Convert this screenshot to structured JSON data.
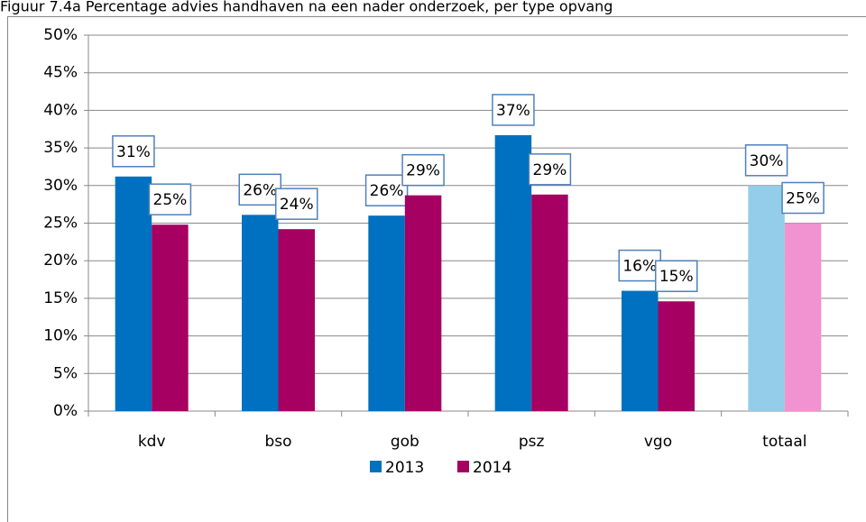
{
  "chart_data": {
    "type": "bar",
    "title": "Figuur 7.4a Percentage advies handhaven na een nader onderzoek, per type opvang",
    "categories": [
      "kdv",
      "bso",
      "gob",
      "psz",
      "vgo",
      "totaal"
    ],
    "series": [
      {
        "name": "2013",
        "color": "#0070c0",
        "point_colors": [
          "#0070c0",
          "#0070c0",
          "#0070c0",
          "#0070c0",
          "#0070c0",
          "#93cde9"
        ],
        "values": [
          31.2,
          26.1,
          26.0,
          36.7,
          16.0,
          30.0
        ],
        "value_labels": [
          "31%",
          "26%",
          "26%",
          "37%",
          "16%",
          "30%"
        ]
      },
      {
        "name": "2014",
        "color": "#a50062",
        "point_colors": [
          "#a50062",
          "#a50062",
          "#a50062",
          "#a50062",
          "#a50062",
          "#f093d0"
        ],
        "values": [
          24.8,
          24.2,
          28.7,
          28.8,
          14.6,
          25.0
        ],
        "value_labels": [
          "25%",
          "24%",
          "29%",
          "29%",
          "15%",
          "25%"
        ]
      }
    ],
    "ylim": [
      0,
      50
    ],
    "yticks": [
      {
        "value": 0,
        "label": "0%"
      },
      {
        "value": 5,
        "label": "5%"
      },
      {
        "value": 10,
        "label": "10%"
      },
      {
        "value": 15,
        "label": "15%"
      },
      {
        "value": 20,
        "label": "20%"
      },
      {
        "value": 25,
        "label": "25%"
      },
      {
        "value": 30,
        "label": "30%"
      },
      {
        "value": 35,
        "label": "35%"
      },
      {
        "value": 40,
        "label": "40%"
      },
      {
        "value": 45,
        "label": "45%"
      },
      {
        "value": 50,
        "label": "50%"
      }
    ],
    "grid": true,
    "legend": "bottom"
  }
}
